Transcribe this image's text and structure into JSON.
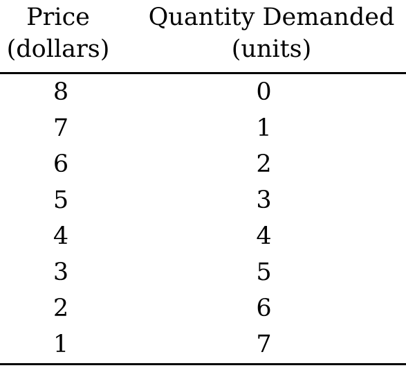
{
  "table": {
    "headers": {
      "price_line1": "Price",
      "price_line2": "(dollars)",
      "quantity_line1": "Quantity Demanded",
      "quantity_line2": "(units)"
    },
    "rows": [
      {
        "price": "8",
        "quantity": "0"
      },
      {
        "price": "7",
        "quantity": "1"
      },
      {
        "price": "6",
        "quantity": "2"
      },
      {
        "price": "5",
        "quantity": "3"
      },
      {
        "price": "4",
        "quantity": "4"
      },
      {
        "price": "3",
        "quantity": "5"
      },
      {
        "price": "2",
        "quantity": "6"
      },
      {
        "price": "1",
        "quantity": "7"
      }
    ]
  }
}
